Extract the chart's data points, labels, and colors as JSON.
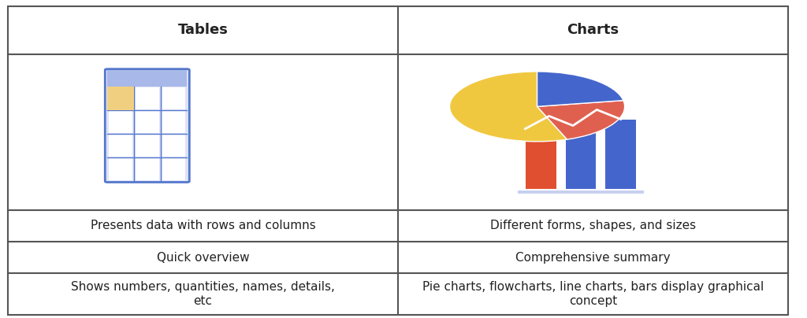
{
  "title_left": "Tables",
  "title_right": "Charts",
  "row1_left": "Presents data with rows and columns",
  "row1_right": "Different forms, shapes, and sizes",
  "row2_left": "Quick overview",
  "row2_right": "Comprehensive summary",
  "row3_left": "Shows numbers, quantities, names, details,\netc",
  "row3_right": "Pie charts, flowcharts, line charts, bars display graphical\nconcept",
  "bg_color": "#ffffff",
  "border_color": "#555555",
  "text_color": "#222222",
  "header_font_size": 13,
  "body_font_size": 11,
  "table_icon_color_header": "#a0aee8",
  "table_icon_color_cell": "#ffffff",
  "table_icon_color_highlight": "#f0d080",
  "table_icon_border": "#5577dd",
  "col_divider": 0.5
}
